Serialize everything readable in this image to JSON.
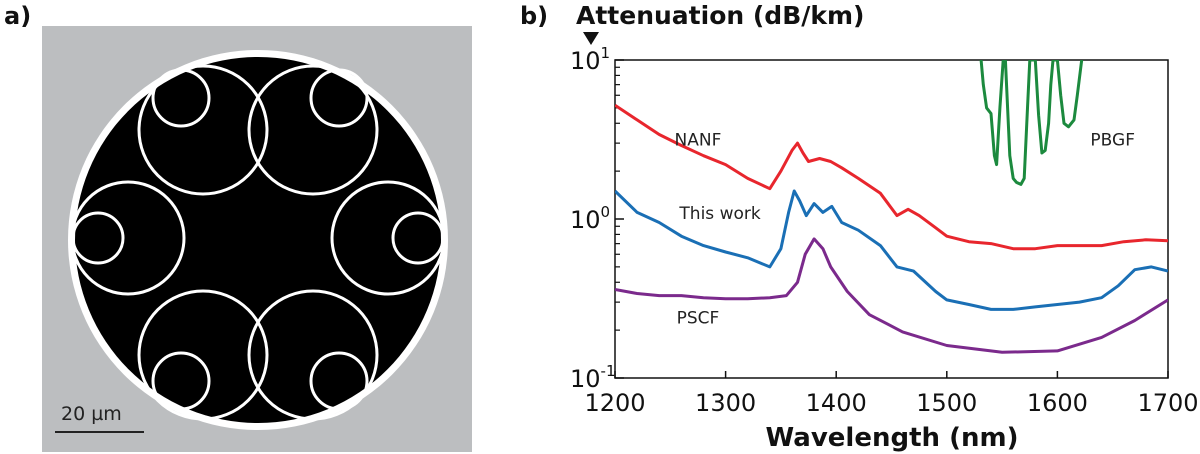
{
  "panel_a": {
    "label": "a)",
    "scale_bar_label": "20 µm",
    "colors": {
      "background": "#bcbec0",
      "core": "#000000",
      "tube": "#ffffff"
    }
  },
  "panel_b": {
    "label": "b)"
  },
  "chart_data": {
    "type": "line",
    "ylabel": "Attenuation (dB/km)",
    "xlabel": "Wavelength (nm)",
    "xlim": [
      1200,
      1700
    ],
    "ylim": [
      0.1,
      10
    ],
    "yscale": "log",
    "x_ticks": [
      1200,
      1300,
      1400,
      1500,
      1600,
      1700
    ],
    "y_ticks": [
      {
        "value": 10,
        "base": "10",
        "exp": "1"
      },
      {
        "value": 1,
        "base": "10",
        "exp": "0"
      },
      {
        "value": 0.1,
        "base": "10",
        "exp": "-1"
      }
    ],
    "grid": false,
    "series": [
      {
        "name": "NANF",
        "color": "#e8262d",
        "points": [
          [
            1200,
            5.2
          ],
          [
            1220,
            4.2
          ],
          [
            1240,
            3.4
          ],
          [
            1260,
            2.9
          ],
          [
            1280,
            2.5
          ],
          [
            1300,
            2.2
          ],
          [
            1320,
            1.8
          ],
          [
            1340,
            1.55
          ],
          [
            1350,
            2.0
          ],
          [
            1360,
            2.7
          ],
          [
            1365,
            3.0
          ],
          [
            1370,
            2.6
          ],
          [
            1375,
            2.3
          ],
          [
            1385,
            2.4
          ],
          [
            1395,
            2.3
          ],
          [
            1405,
            2.1
          ],
          [
            1420,
            1.8
          ],
          [
            1440,
            1.45
          ],
          [
            1455,
            1.05
          ],
          [
            1465,
            1.15
          ],
          [
            1475,
            1.05
          ],
          [
            1490,
            0.88
          ],
          [
            1500,
            0.78
          ],
          [
            1520,
            0.72
          ],
          [
            1540,
            0.7
          ],
          [
            1560,
            0.65
          ],
          [
            1580,
            0.65
          ],
          [
            1600,
            0.68
          ],
          [
            1620,
            0.68
          ],
          [
            1640,
            0.68
          ],
          [
            1660,
            0.72
          ],
          [
            1680,
            0.74
          ],
          [
            1700,
            0.73
          ]
        ]
      },
      {
        "name": "This work",
        "color": "#1a6fb5",
        "points": [
          [
            1200,
            1.5
          ],
          [
            1220,
            1.1
          ],
          [
            1240,
            0.95
          ],
          [
            1260,
            0.78
          ],
          [
            1280,
            0.68
          ],
          [
            1300,
            0.62
          ],
          [
            1320,
            0.57
          ],
          [
            1340,
            0.5
          ],
          [
            1350,
            0.65
          ],
          [
            1357,
            1.1
          ],
          [
            1362,
            1.5
          ],
          [
            1367,
            1.3
          ],
          [
            1373,
            1.05
          ],
          [
            1380,
            1.25
          ],
          [
            1388,
            1.1
          ],
          [
            1396,
            1.2
          ],
          [
            1405,
            0.95
          ],
          [
            1420,
            0.85
          ],
          [
            1440,
            0.68
          ],
          [
            1455,
            0.5
          ],
          [
            1470,
            0.47
          ],
          [
            1490,
            0.35
          ],
          [
            1500,
            0.31
          ],
          [
            1520,
            0.29
          ],
          [
            1540,
            0.27
          ],
          [
            1560,
            0.27
          ],
          [
            1580,
            0.28
          ],
          [
            1600,
            0.29
          ],
          [
            1620,
            0.3
          ],
          [
            1640,
            0.32
          ],
          [
            1655,
            0.38
          ],
          [
            1670,
            0.48
          ],
          [
            1685,
            0.5
          ],
          [
            1700,
            0.47
          ]
        ]
      },
      {
        "name": "PSCF",
        "color": "#7b2a8c",
        "points": [
          [
            1200,
            0.36
          ],
          [
            1220,
            0.34
          ],
          [
            1240,
            0.33
          ],
          [
            1260,
            0.33
          ],
          [
            1280,
            0.32
          ],
          [
            1300,
            0.315
          ],
          [
            1320,
            0.315
          ],
          [
            1340,
            0.32
          ],
          [
            1355,
            0.33
          ],
          [
            1365,
            0.4
          ],
          [
            1372,
            0.6
          ],
          [
            1380,
            0.75
          ],
          [
            1388,
            0.65
          ],
          [
            1395,
            0.5
          ],
          [
            1410,
            0.35
          ],
          [
            1430,
            0.25
          ],
          [
            1460,
            0.195
          ],
          [
            1500,
            0.16
          ],
          [
            1550,
            0.145
          ],
          [
            1600,
            0.148
          ],
          [
            1640,
            0.18
          ],
          [
            1670,
            0.23
          ],
          [
            1700,
            0.31
          ]
        ]
      },
      {
        "name": "PBGF",
        "color": "#1c8a3e",
        "points": [
          [
            1531,
            10
          ],
          [
            1533,
            7
          ],
          [
            1536,
            5
          ],
          [
            1540,
            4.6
          ],
          [
            1543,
            2.5
          ],
          [
            1545,
            2.2
          ],
          [
            1548,
            5
          ],
          [
            1551,
            10
          ],
          [
            1553,
            10
          ],
          [
            1555,
            5
          ],
          [
            1557,
            2.5
          ],
          [
            1560,
            1.8
          ],
          [
            1563,
            1.7
          ],
          [
            1567,
            1.65
          ],
          [
            1570,
            1.8
          ],
          [
            1573,
            5
          ],
          [
            1575,
            10
          ],
          [
            1580,
            10
          ],
          [
            1583,
            4.5
          ],
          [
            1586,
            2.6
          ],
          [
            1589,
            2.7
          ],
          [
            1592,
            4
          ],
          [
            1594,
            7
          ],
          [
            1596,
            10
          ],
          [
            1600,
            10
          ],
          [
            1603,
            6
          ],
          [
            1606,
            4
          ],
          [
            1610,
            3.8
          ],
          [
            1615,
            4.2
          ],
          [
            1618,
            6
          ],
          [
            1622,
            10
          ]
        ]
      }
    ],
    "annotations": [
      {
        "text": "NANF",
        "x": 1275,
        "y": 2.9
      },
      {
        "text": "This work",
        "x": 1295,
        "y": 1.0
      },
      {
        "text": "PSCF",
        "x": 1275,
        "y": 0.22
      },
      {
        "text": "PBGF",
        "x": 1650,
        "y": 2.9
      }
    ]
  }
}
